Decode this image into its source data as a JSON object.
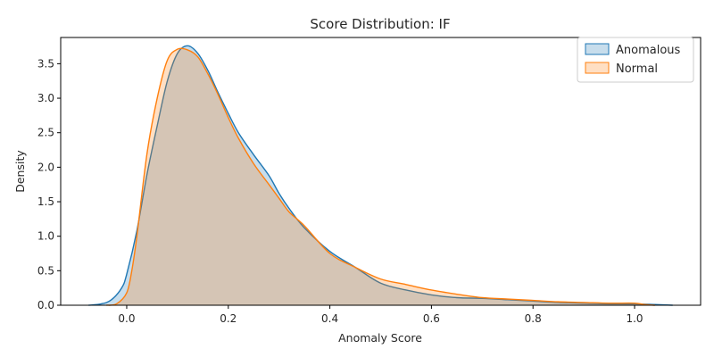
{
  "chart_data": {
    "type": "area",
    "title": "Score Distribution: IF",
    "xlabel": "Anomaly Score",
    "ylabel": "Density",
    "xlim": [
      -0.13,
      1.13
    ],
    "ylim": [
      0,
      3.88
    ],
    "xticks": [
      0.0,
      0.2,
      0.4,
      0.6,
      0.8,
      1.0
    ],
    "xtick_labels": [
      "0.0",
      "0.2",
      "0.4",
      "0.6",
      "0.8",
      "1.0"
    ],
    "yticks": [
      0.0,
      0.5,
      1.0,
      1.5,
      2.0,
      2.5,
      3.0,
      3.5
    ],
    "ytick_labels": [
      "0.0",
      "0.5",
      "1.0",
      "1.5",
      "2.0",
      "2.5",
      "3.0",
      "3.5"
    ],
    "grid": false,
    "legend_position": "top-right",
    "series": [
      {
        "name": "Anomalous",
        "line_color": "#1f77b4",
        "fill_color": "#1f77b4",
        "points": [
          [
            -0.075,
            0.0
          ],
          [
            -0.05,
            0.02
          ],
          [
            -0.03,
            0.08
          ],
          [
            -0.01,
            0.25
          ],
          [
            0.0,
            0.45
          ],
          [
            0.02,
            1.08
          ],
          [
            0.04,
            1.9
          ],
          [
            0.06,
            2.6
          ],
          [
            0.08,
            3.25
          ],
          [
            0.1,
            3.65
          ],
          [
            0.12,
            3.76
          ],
          [
            0.14,
            3.65
          ],
          [
            0.16,
            3.4
          ],
          [
            0.18,
            3.08
          ],
          [
            0.2,
            2.78
          ],
          [
            0.22,
            2.5
          ],
          [
            0.25,
            2.18
          ],
          [
            0.28,
            1.88
          ],
          [
            0.3,
            1.62
          ],
          [
            0.32,
            1.4
          ],
          [
            0.35,
            1.12
          ],
          [
            0.4,
            0.78
          ],
          [
            0.45,
            0.55
          ],
          [
            0.5,
            0.32
          ],
          [
            0.55,
            0.22
          ],
          [
            0.6,
            0.15
          ],
          [
            0.65,
            0.11
          ],
          [
            0.7,
            0.1
          ],
          [
            0.75,
            0.08
          ],
          [
            0.8,
            0.06
          ],
          [
            0.85,
            0.04
          ],
          [
            0.9,
            0.03
          ],
          [
            0.95,
            0.02
          ],
          [
            1.0,
            0.02
          ],
          [
            1.04,
            0.01
          ],
          [
            1.075,
            0.0
          ]
        ]
      },
      {
        "name": "Normal",
        "line_color": "#ff7f0e",
        "fill_color": "#ff7f0e",
        "points": [
          [
            -0.04,
            0.0
          ],
          [
            -0.02,
            0.02
          ],
          [
            0.0,
            0.18
          ],
          [
            0.01,
            0.5
          ],
          [
            0.02,
            1.0
          ],
          [
            0.04,
            2.2
          ],
          [
            0.06,
            3.0
          ],
          [
            0.08,
            3.55
          ],
          [
            0.1,
            3.71
          ],
          [
            0.12,
            3.7
          ],
          [
            0.14,
            3.6
          ],
          [
            0.16,
            3.35
          ],
          [
            0.18,
            3.05
          ],
          [
            0.2,
            2.72
          ],
          [
            0.22,
            2.42
          ],
          [
            0.25,
            2.05
          ],
          [
            0.28,
            1.75
          ],
          [
            0.3,
            1.55
          ],
          [
            0.32,
            1.35
          ],
          [
            0.35,
            1.15
          ],
          [
            0.4,
            0.75
          ],
          [
            0.45,
            0.55
          ],
          [
            0.5,
            0.38
          ],
          [
            0.55,
            0.3
          ],
          [
            0.6,
            0.22
          ],
          [
            0.65,
            0.16
          ],
          [
            0.7,
            0.11
          ],
          [
            0.75,
            0.09
          ],
          [
            0.8,
            0.07
          ],
          [
            0.85,
            0.05
          ],
          [
            0.9,
            0.04
          ],
          [
            0.95,
            0.03
          ],
          [
            1.0,
            0.03
          ],
          [
            1.02,
            0.01
          ],
          [
            1.04,
            0.0
          ]
        ]
      }
    ]
  }
}
